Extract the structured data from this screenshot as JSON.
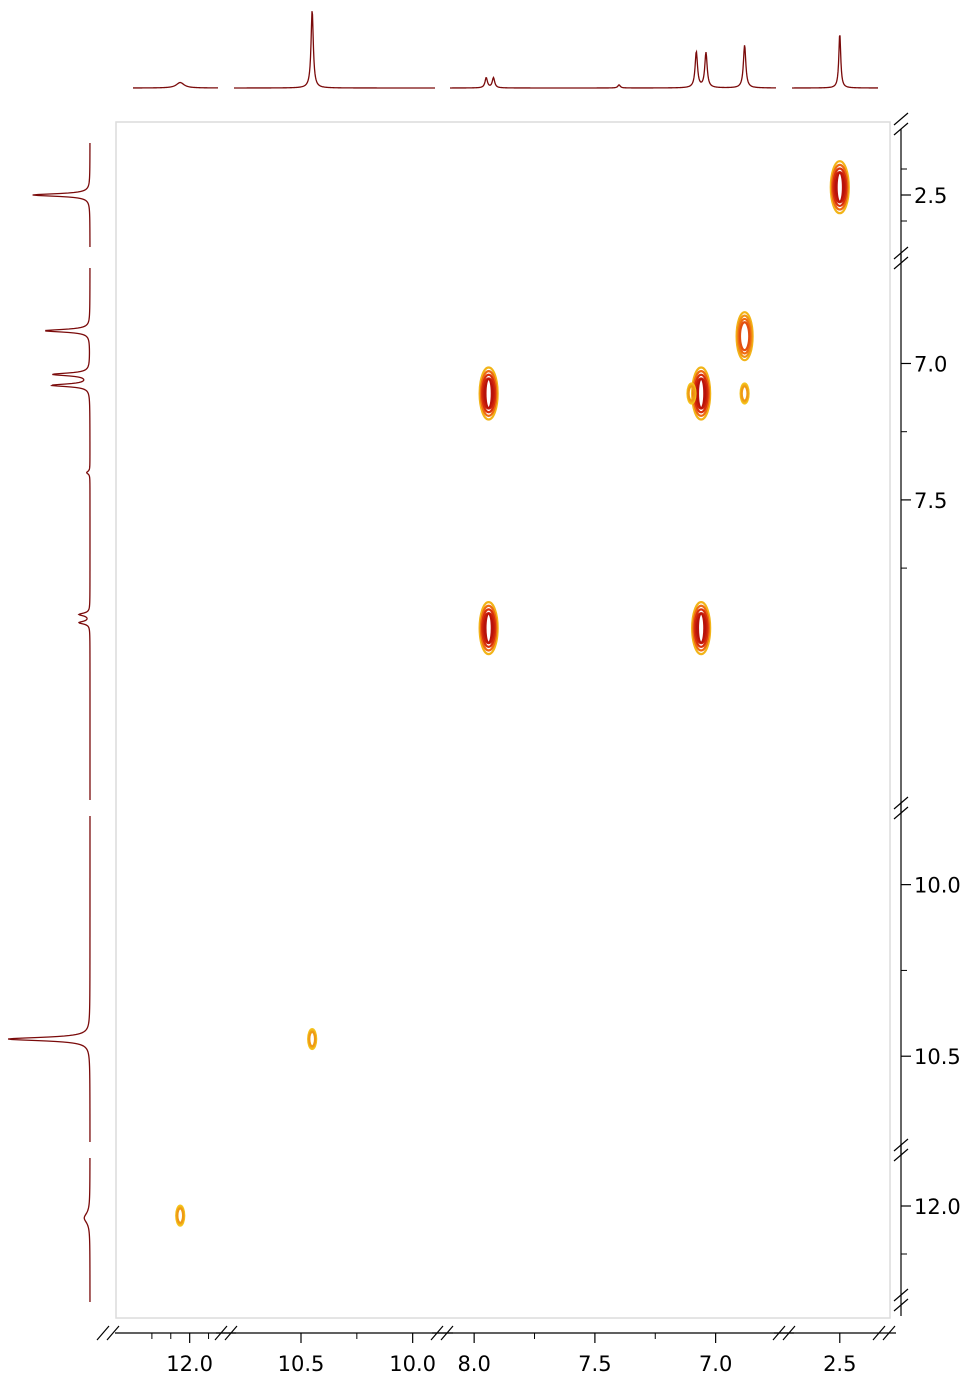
{
  "chart_data": {
    "type": "heatmap",
    "title": "",
    "xlabel": "",
    "ylabel": "",
    "x_segments": [
      {
        "range": [
          12.3,
          11.85
        ],
        "ticks": [
          12.0
        ],
        "minor_ticks": [
          12.2,
          12.1,
          11.9
        ]
      },
      {
        "range": [
          10.8,
          9.9
        ],
        "ticks": [
          10.5,
          10.0
        ],
        "minor_ticks": [
          10.25
        ]
      },
      {
        "range": [
          8.1,
          6.75
        ],
        "ticks": [
          8.0,
          7.5,
          7.0
        ],
        "minor_ticks": [
          7.75,
          7.25
        ]
      },
      {
        "range": [
          2.75,
          2.3
        ],
        "ticks": [
          2.5
        ],
        "minor_ticks": []
      }
    ],
    "y_segments": [
      {
        "range": [
          2.3,
          2.7
        ],
        "ticks": [
          2.5
        ],
        "minor_ticks": [
          2.4,
          2.6
        ]
      },
      {
        "range": [
          6.65,
          8.6
        ],
        "ticks": [
          7.0,
          7.5
        ],
        "minor_ticks": [
          7.25,
          7.75
        ]
      },
      {
        "range": [
          9.8,
          10.75
        ],
        "ticks": [
          10.0,
          10.5
        ],
        "minor_ticks": [
          10.25
        ]
      },
      {
        "range": [
          11.8,
          12.4
        ],
        "ticks": [
          12.0
        ],
        "minor_ticks": [
          12.2
        ]
      }
    ],
    "cross_peaks": [
      {
        "x": 2.5,
        "y": 2.47,
        "intensity": "strong"
      },
      {
        "x": 6.88,
        "y": 6.9,
        "intensity": "medium"
      },
      {
        "x": 6.88,
        "y": 7.11,
        "intensity": "weak"
      },
      {
        "x": 7.94,
        "y": 7.11,
        "intensity": "strong"
      },
      {
        "x": 7.06,
        "y": 7.11,
        "intensity": "strong"
      },
      {
        "x": 7.1,
        "y": 7.11,
        "intensity": "weak"
      },
      {
        "x": 7.94,
        "y": 7.97,
        "intensity": "strong"
      },
      {
        "x": 7.06,
        "y": 7.97,
        "intensity": "strong"
      },
      {
        "x": 10.45,
        "y": 10.45,
        "intensity": "weak"
      },
      {
        "x": 12.05,
        "y": 12.04,
        "intensity": "weak"
      }
    ],
    "projection_peaks": [
      {
        "shift": 12.05,
        "height": 0.07
      },
      {
        "shift": 10.45,
        "height": 1.0
      },
      {
        "shift": 7.95,
        "height": 0.13
      },
      {
        "shift": 7.92,
        "height": 0.13
      },
      {
        "shift": 7.08,
        "height": 0.46
      },
      {
        "shift": 7.04,
        "height": 0.45
      },
      {
        "shift": 6.88,
        "height": 0.55
      },
      {
        "shift": 7.4,
        "height": 0.04
      },
      {
        "shift": 2.5,
        "height": 0.7
      }
    ],
    "colors": {
      "strong": "#c81e0a",
      "medium": "#ee6a12",
      "weak": "#f2b418",
      "projection": "#7a0a0a",
      "frame": "#dcdcdc"
    }
  }
}
